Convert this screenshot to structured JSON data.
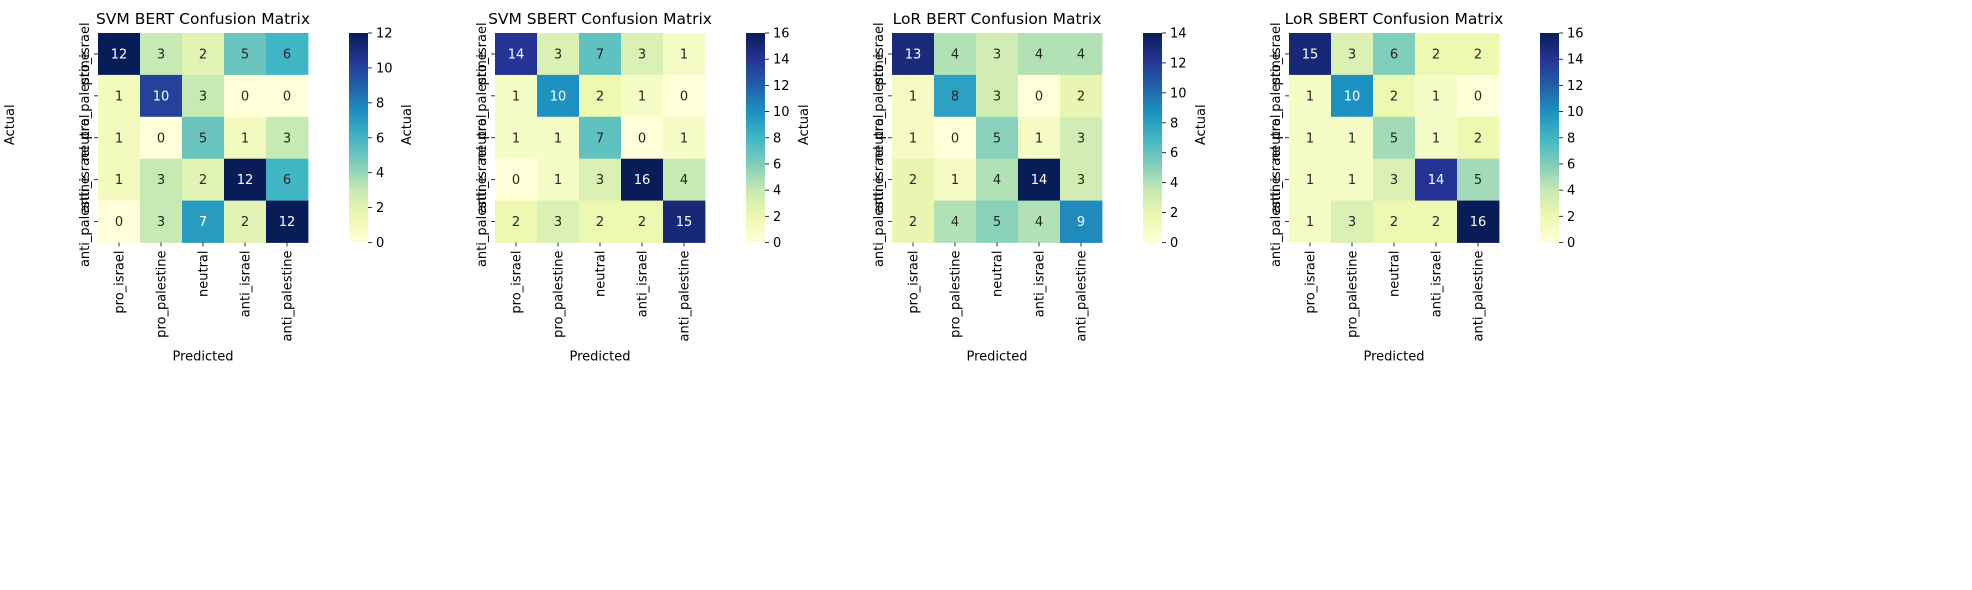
{
  "chart_data": [
    {
      "type": "heatmap",
      "title": "SVM BERT Confusion Matrix",
      "xlabel": "Predicted",
      "ylabel": "Actual",
      "x_categories": [
        "pro_israel",
        "pro_palestine",
        "neutral",
        "anti_israel",
        "anti_palestine"
      ],
      "y_categories": [
        "pro_israel",
        "pro_palestine",
        "neutral",
        "anti_israel",
        "anti_palestine"
      ],
      "values": [
        [
          12,
          3,
          2,
          5,
          6
        ],
        [
          1,
          10,
          3,
          0,
          0
        ],
        [
          1,
          0,
          5,
          1,
          3
        ],
        [
          1,
          3,
          2,
          12,
          6
        ],
        [
          0,
          3,
          7,
          2,
          12
        ]
      ],
      "vmin": 0,
      "vmax": 12,
      "colorbar_ticks": [
        0,
        2,
        4,
        6,
        8,
        10,
        12
      ],
      "colormap": "YlGnBu"
    },
    {
      "type": "heatmap",
      "title": "SVM SBERT Confusion Matrix",
      "xlabel": "Predicted",
      "ylabel": "Actual",
      "x_categories": [
        "pro_israel",
        "pro_palestine",
        "neutral",
        "anti_israel",
        "anti_palestine"
      ],
      "y_categories": [
        "pro_israel",
        "pro_palestine",
        "neutral",
        "anti_israel",
        "anti_palestine"
      ],
      "values": [
        [
          14,
          3,
          7,
          3,
          1
        ],
        [
          1,
          10,
          2,
          1,
          0
        ],
        [
          1,
          1,
          7,
          0,
          1
        ],
        [
          0,
          1,
          3,
          16,
          4
        ],
        [
          2,
          3,
          2,
          2,
          15
        ]
      ],
      "vmin": 0,
      "vmax": 16,
      "colorbar_ticks": [
        0,
        2,
        4,
        6,
        8,
        10,
        12,
        14,
        16
      ],
      "colormap": "YlGnBu"
    },
    {
      "type": "heatmap",
      "title": "LoR BERT Confusion Matrix",
      "xlabel": "Predicted",
      "ylabel": "Actual",
      "x_categories": [
        "pro_israel",
        "pro_palestine",
        "neutral",
        "anti_israel",
        "anti_palestine"
      ],
      "y_categories": [
        "pro_israel",
        "pro_palestine",
        "neutral",
        "anti_israel",
        "anti_palestine"
      ],
      "values": [
        [
          13,
          4,
          3,
          4,
          4
        ],
        [
          1,
          8,
          3,
          0,
          2
        ],
        [
          1,
          0,
          5,
          1,
          3
        ],
        [
          2,
          1,
          4,
          14,
          3
        ],
        [
          2,
          4,
          5,
          4,
          9
        ]
      ],
      "vmin": 0,
      "vmax": 14,
      "colorbar_ticks": [
        0,
        2,
        4,
        6,
        8,
        10,
        12,
        14
      ],
      "colormap": "YlGnBu"
    },
    {
      "type": "heatmap",
      "title": "LoR SBERT Confusion Matrix",
      "xlabel": "Predicted",
      "ylabel": "Actual",
      "x_categories": [
        "pro_israel",
        "pro_palestine",
        "neutral",
        "anti_israel",
        "anti_palestine"
      ],
      "y_categories": [
        "pro_israel",
        "pro_palestine",
        "neutral",
        "anti_israel",
        "anti_palestine"
      ],
      "values": [
        [
          15,
          3,
          6,
          2,
          2
        ],
        [
          1,
          10,
          2,
          1,
          0
        ],
        [
          1,
          1,
          5,
          1,
          2
        ],
        [
          1,
          1,
          3,
          14,
          5
        ],
        [
          1,
          3,
          2,
          2,
          16
        ]
      ],
      "vmin": 0,
      "vmax": 16,
      "colorbar_ticks": [
        0,
        2,
        4,
        6,
        8,
        10,
        12,
        14,
        16
      ],
      "colormap": "YlGnBu"
    }
  ]
}
